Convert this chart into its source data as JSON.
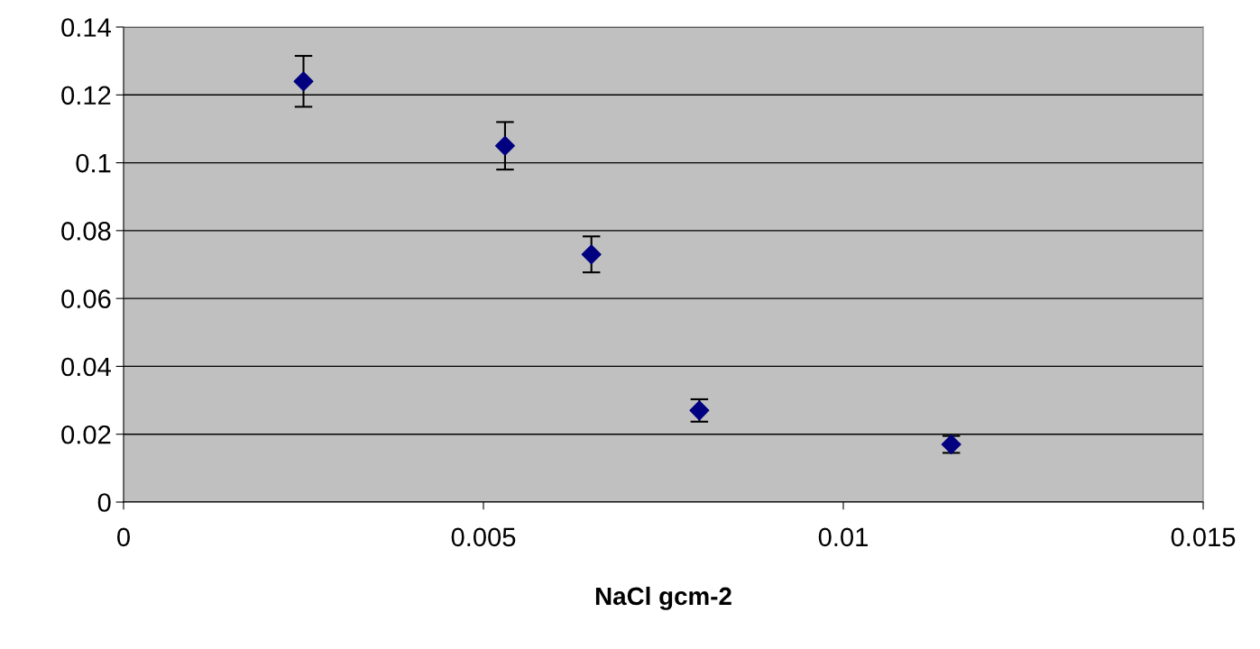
{
  "chart_data": {
    "type": "scatter",
    "xlabel": "NaCl gcm-2",
    "x": [
      0.0025,
      0.0053,
      0.0065,
      0.008,
      0.0115
    ],
    "values": [
      0.124,
      0.105,
      0.073,
      0.027,
      0.017
    ],
    "errors": [
      0.0075,
      0.007,
      0.0053,
      0.0033,
      0.0025
    ],
    "color": "#000080",
    "marker": "diamond",
    "xlim": [
      0,
      0.015
    ],
    "xticks": [
      0,
      0.005,
      0.01,
      0.015
    ],
    "ylim": [
      0,
      0.14
    ],
    "yticks": [
      0,
      0.02,
      0.04,
      0.06,
      0.08,
      0.1,
      0.12,
      0.14
    ],
    "grid": "y"
  }
}
